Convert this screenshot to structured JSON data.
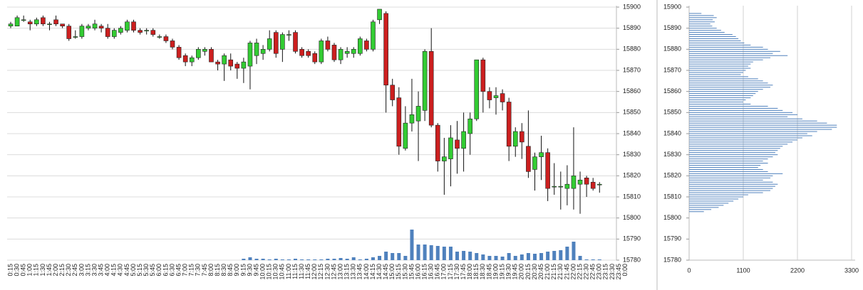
{
  "chart_data": [
    {
      "type": "candlestick",
      "categories": [
        "0:15",
        "0:30",
        "0:45",
        "1:00",
        "1:15",
        "1:30",
        "1:45",
        "2:00",
        "2:15",
        "2:30",
        "2:45",
        "3:00",
        "3:15",
        "3:30",
        "3:45",
        "4:00",
        "4:15",
        "4:30",
        "4:45",
        "5:00",
        "5:15",
        "5:30",
        "5:45",
        "6:00",
        "6:15",
        "6:30",
        "6:45",
        "7:00",
        "7:15",
        "7:30",
        "7:45",
        "8:00",
        "8:15",
        "8:30",
        "8:45",
        "9:00",
        "9:15",
        "9:30",
        "9:45",
        "10:00",
        "10:15",
        "10:30",
        "10:45",
        "11:00",
        "11:15",
        "11:30",
        "11:45",
        "12:00",
        "12:15",
        "12:30",
        "12:45",
        "13:00",
        "13:15",
        "13:30",
        "13:45",
        "14:00",
        "14:15",
        "14:30",
        "14:45",
        "15:00",
        "15:15",
        "15:30",
        "15:45",
        "16:00",
        "16:15",
        "16:30",
        "16:45",
        "17:00",
        "17:15",
        "17:30",
        "17:45",
        "18:00",
        "18:15",
        "18:30",
        "18:45",
        "19:00",
        "19:15",
        "19:30",
        "19:45",
        "20:00",
        "20:15",
        "20:30",
        "20:45",
        "21:00",
        "21:15",
        "21:30",
        "21:45",
        "22:00",
        "22:15",
        "22:30",
        "22:45",
        "23:00",
        "23:15",
        "23:30",
        "23:45",
        "0:00"
      ],
      "open": [
        15891,
        15891,
        15894,
        15893,
        15892,
        15895,
        15892,
        15894,
        15892,
        15891,
        15886,
        15886,
        15890,
        15890,
        15891,
        15890,
        15886,
        15888,
        15889,
        15893,
        15889,
        15889,
        15889,
        15886,
        15886,
        15884,
        15881,
        15877,
        15874,
        15876,
        15879,
        15880,
        15874,
        15873,
        15875,
        15873,
        15871,
        15872,
        15877,
        15878,
        15880,
        15888,
        15880,
        15887,
        15888,
        15880,
        15879,
        15878,
        15874,
        15884,
        15882,
        15875,
        15878,
        15878,
        15878,
        15884,
        15880,
        15894,
        15897,
        15863,
        15857,
        15833,
        15845,
        15846,
        15851,
        15879,
        15844,
        15827,
        15828,
        15837,
        15833,
        15840,
        15847,
        15875,
        15860,
        15857,
        15859,
        15855,
        15834,
        15841,
        15834,
        15823,
        15829,
        15831,
        15815,
        15815,
        15814,
        15814,
        15816,
        15819,
        15817,
        15816,
        null,
        null,
        null,
        null
      ],
      "high": [
        15893,
        15896,
        15896,
        15894,
        15895,
        15896,
        15893,
        15896,
        15892,
        15892,
        15889,
        15892,
        15892,
        15894,
        15892,
        15892,
        15890,
        15891,
        15894,
        15894,
        15890,
        15890,
        15890,
        15887,
        15887,
        15885,
        15882,
        15878,
        15877,
        15881,
        15881,
        15881,
        15875,
        15878,
        15878,
        15874,
        15876,
        15884,
        15885,
        15882,
        15889,
        15889,
        15888,
        15889,
        15889,
        15881,
        15880,
        15879,
        15885,
        15886,
        15883,
        15881,
        15881,
        15881,
        15886,
        15885,
        15894,
        15899,
        15898,
        15866,
        15862,
        15853,
        15866,
        15860,
        15880,
        15890,
        15845,
        15838,
        15844,
        15846,
        15850,
        15850,
        15875,
        15876,
        15862,
        15862,
        15861,
        15857,
        15843,
        15845,
        15851,
        15831,
        15839,
        15833,
        15826,
        15822,
        15825,
        15843,
        15822,
        15820,
        15819,
        15817,
        null,
        null,
        null,
        null
      ],
      "low": [
        15890,
        15891,
        15893,
        15889,
        15891,
        15891,
        15889,
        15891,
        15890,
        15884,
        15885,
        15885,
        15889,
        15889,
        15888,
        15885,
        15885,
        15887,
        15888,
        15888,
        15887,
        15887,
        15886,
        15885,
        15883,
        15880,
        15875,
        15872,
        15872,
        15875,
        15877,
        15874,
        15870,
        15865,
        15870,
        15866,
        15864,
        15861,
        15873,
        15875,
        15879,
        15876,
        15874,
        15884,
        15878,
        15876,
        15876,
        15873,
        15873,
        15879,
        15874,
        15873,
        15876,
        15876,
        15877,
        15879,
        15879,
        15892,
        15850,
        15853,
        15830,
        15832,
        15841,
        15827,
        15846,
        15843,
        15822,
        15811,
        15815,
        15821,
        15822,
        15830,
        15846,
        15850,
        15852,
        15849,
        15851,
        15827,
        15829,
        15828,
        15819,
        15813,
        15818,
        15808,
        15811,
        15804,
        15806,
        15804,
        15802,
        15810,
        15813,
        15812,
        null,
        null,
        null,
        null
      ],
      "close": [
        15892,
        15895,
        15894,
        15892,
        15894,
        15892,
        15892,
        15892,
        15891,
        15885,
        15886,
        15891,
        15891,
        15892,
        15890,
        15886,
        15889,
        15890,
        15893,
        15889,
        15888,
        15889,
        15887,
        15886,
        15884,
        15881,
        15876,
        15874,
        15876,
        15880,
        15880,
        15874,
        15873,
        15877,
        15872,
        15871,
        15874,
        15883,
        15883,
        15880,
        15885,
        15878,
        15887,
        15887,
        15879,
        15877,
        15877,
        15874,
        15884,
        15880,
        15875,
        15880,
        15879,
        15880,
        15885,
        15880,
        15893,
        15899,
        15863,
        15856,
        15834,
        15845,
        15849,
        15853,
        15879,
        15844,
        15827,
        15829,
        15838,
        15833,
        15841,
        15847,
        15875,
        15860,
        15856,
        15858,
        15855,
        15834,
        15841,
        15836,
        15822,
        15829,
        15831,
        15814,
        15815,
        15815,
        15816,
        15820,
        15818,
        15816,
        15814,
        15816,
        null,
        null,
        null,
        null
      ],
      "volume": [
        0,
        0,
        0,
        0,
        0,
        0,
        0,
        0,
        0,
        0,
        0,
        0,
        0,
        0,
        0,
        0,
        0,
        0,
        0,
        0,
        0,
        0,
        0,
        0,
        0,
        0,
        0,
        0,
        0,
        0,
        0,
        0,
        0,
        0,
        0,
        0,
        2,
        4,
        2,
        2,
        1,
        2,
        1,
        1,
        2,
        1,
        1,
        1,
        1,
        2,
        2,
        3,
        2,
        4,
        1,
        2,
        4,
        6,
        12,
        10,
        10,
        6,
        43,
        22,
        22,
        21,
        20,
        19,
        19,
        12,
        13,
        12,
        10,
        8,
        6,
        6,
        5,
        10,
        6,
        8,
        10,
        9,
        10,
        12,
        13,
        14,
        19,
        26,
        6,
        1,
        1,
        1,
        null,
        null,
        null,
        null
      ],
      "up_color": "#33cc33",
      "down_color": "#cc1f1f",
      "volume_color": "#4f81bd",
      "ylim": [
        15780,
        15900
      ],
      "yticks": [
        15780,
        15790,
        15800,
        15810,
        15820,
        15830,
        15840,
        15850,
        15860,
        15870,
        15880,
        15890,
        15900
      ],
      "grid": true
    },
    {
      "type": "profile",
      "y": [
        15897,
        15896,
        15895,
        15894,
        15893,
        15892,
        15891,
        15890,
        15889,
        15888,
        15887,
        15886,
        15885,
        15884,
        15883,
        15882,
        15881,
        15880,
        15879,
        15878,
        15877,
        15876,
        15875,
        15874,
        15873,
        15872,
        15871,
        15870,
        15869,
        15868,
        15867,
        15866,
        15865,
        15864,
        15863,
        15862,
        15861,
        15860,
        15859,
        15858,
        15857,
        15856,
        15855,
        15854,
        15853,
        15852,
        15851,
        15850,
        15849,
        15848,
        15847,
        15846,
        15845,
        15844,
        15843,
        15842,
        15841,
        15840,
        15839,
        15838,
        15837,
        15836,
        15835,
        15834,
        15833,
        15832,
        15831,
        15830,
        15829,
        15828,
        15827,
        15826,
        15825,
        15824,
        15823,
        15822,
        15821,
        15820,
        15819,
        15818,
        15817,
        15816,
        15815,
        15814,
        15813,
        15812,
        15811,
        15810,
        15809,
        15808,
        15807,
        15806,
        15805,
        15804,
        15803
      ],
      "values": [
        250,
        500,
        560,
        480,
        520,
        430,
        470,
        560,
        650,
        720,
        880,
        950,
        1000,
        1050,
        1120,
        1250,
        1500,
        1600,
        1850,
        1700,
        2000,
        1650,
        1500,
        1300,
        1250,
        1200,
        1250,
        1150,
        1100,
        1050,
        1200,
        1400,
        1500,
        1600,
        1700,
        1650,
        1500,
        1400,
        1350,
        1300,
        1250,
        1150,
        1100,
        1250,
        1600,
        1800,
        1900,
        2100,
        2200,
        2000,
        2300,
        2600,
        2800,
        3000,
        3000,
        2900,
        2600,
        2400,
        2500,
        2300,
        2200,
        2100,
        2000,
        1900,
        1850,
        1800,
        1750,
        1800,
        1700,
        1600,
        1500,
        1600,
        1450,
        1400,
        1500,
        1600,
        1900,
        1700,
        1650,
        1500,
        1700,
        1800,
        1750,
        1700,
        1650,
        1500,
        1200,
        1100,
        1000,
        900,
        800,
        700,
        600,
        450,
        300
      ],
      "color": "#4f81bd",
      "xlim": [
        0,
        3300
      ],
      "xticks": [
        0,
        1100,
        2200,
        3300
      ],
      "ylim": [
        15780,
        15900
      ],
      "yticks": [
        15780,
        15790,
        15800,
        15810,
        15820,
        15830,
        15840,
        15850,
        15860,
        15870,
        15880,
        15890,
        15900
      ],
      "grid": true
    }
  ]
}
